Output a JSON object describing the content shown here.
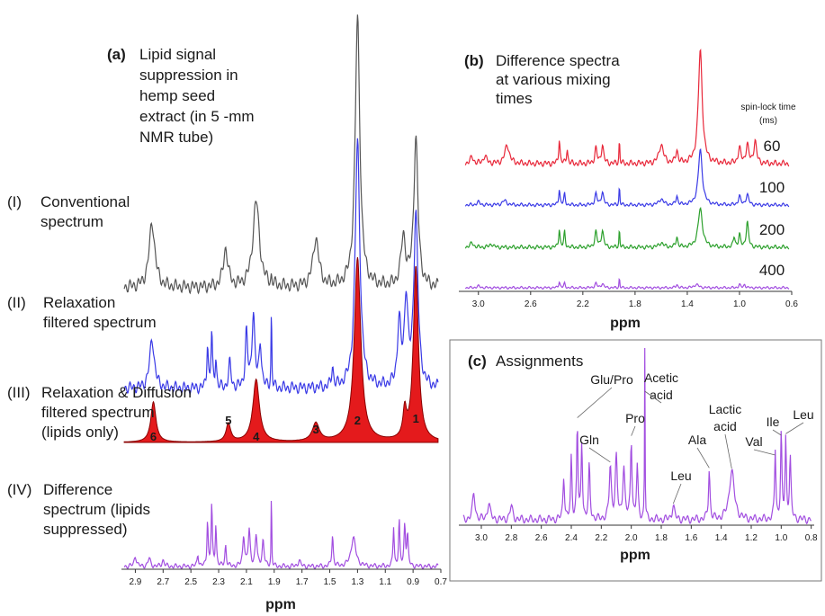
{
  "chart_data": [
    {
      "id": "a",
      "type": "line",
      "panel_label": "(a)",
      "title_lines": [
        "Lipid signal",
        "suppression in",
        "hemp seed",
        "extract (in 5 -mm",
        "NMR tube)"
      ],
      "xlabel": "ppm",
      "xlim": [
        3.0,
        0.7
      ],
      "x_reversed": true,
      "xticks": [
        "2.9",
        "2.7",
        "2.5",
        "2.3",
        "2.1",
        "1.9",
        "1.7",
        "1.5",
        "1.3",
        "1.1",
        "0.9",
        "0.7"
      ],
      "series": [
        {
          "roman": "(I)",
          "label_lines": [
            "Conventional",
            "spectrum"
          ],
          "color": "#555555",
          "fill": false,
          "peaks": [
            [
              2.78,
              0.24,
              0.025
            ],
            [
              2.25,
              0.14,
              0.02
            ],
            [
              2.03,
              0.32,
              0.028
            ],
            [
              1.92,
              0.03,
              0.003
            ],
            [
              1.6,
              0.18,
              0.025
            ],
            [
              1.3,
              1.0,
              0.02
            ],
            [
              0.97,
              0.18,
              0.02
            ],
            [
              0.88,
              0.55,
              0.018
            ]
          ]
        },
        {
          "roman": "(II)",
          "label_lines": [
            "Relaxation",
            "filtered spectrum"
          ],
          "color": "#3a3ae6",
          "fill": false,
          "peaks": [
            [
              2.78,
              0.2,
              0.02
            ],
            [
              2.38,
              0.18,
              0.006
            ],
            [
              2.35,
              0.22,
              0.006
            ],
            [
              2.32,
              0.12,
              0.006
            ],
            [
              2.22,
              0.1,
              0.01
            ],
            [
              2.1,
              0.22,
              0.01
            ],
            [
              2.05,
              0.3,
              0.012
            ],
            [
              2.0,
              0.18,
              0.01
            ],
            [
              1.92,
              0.35,
              0.003
            ],
            [
              1.48,
              0.08,
              0.008
            ],
            [
              1.3,
              1.0,
              0.02
            ],
            [
              1.0,
              0.25,
              0.015
            ],
            [
              0.95,
              0.35,
              0.015
            ],
            [
              0.88,
              0.7,
              0.018
            ]
          ]
        },
        {
          "roman": "(III)",
          "label_lines": [
            "Relaxation & Diffusion",
            "filtered spectrum",
            "(lipids only)"
          ],
          "color": "#e41a1c",
          "fill": true,
          "peaks": [
            [
              2.77,
              0.22,
              0.022
            ],
            [
              2.23,
              0.1,
              0.02
            ],
            [
              2.03,
              0.34,
              0.028
            ],
            [
              1.6,
              0.1,
              0.03
            ],
            [
              1.3,
              1.0,
              0.028
            ],
            [
              0.96,
              0.15,
              0.015
            ],
            [
              0.88,
              0.95,
              0.022
            ]
          ],
          "peak_numbers": [
            {
              "n": "6",
              "x": 2.77
            },
            {
              "n": "5",
              "x": 2.23
            },
            {
              "n": "4",
              "x": 2.03
            },
            {
              "n": "3",
              "x": 1.6
            },
            {
              "n": "2",
              "x": 1.3
            },
            {
              "n": "1",
              "x": 0.88
            }
          ]
        },
        {
          "roman": "(IV)",
          "label_lines": [
            "Difference",
            "spectrum (lipids",
            "suppressed)"
          ],
          "color": "#a24ee0",
          "fill": false,
          "peaks": [
            [
              2.9,
              0.1,
              0.01
            ],
            [
              2.8,
              0.08,
              0.01
            ],
            [
              2.7,
              0.06,
              0.01
            ],
            [
              2.45,
              0.12,
              0.006
            ],
            [
              2.38,
              0.45,
              0.005
            ],
            [
              2.35,
              0.6,
              0.005
            ],
            [
              2.32,
              0.4,
              0.005
            ],
            [
              2.25,
              0.2,
              0.006
            ],
            [
              2.12,
              0.3,
              0.008
            ],
            [
              2.08,
              0.35,
              0.008
            ],
            [
              2.03,
              0.3,
              0.008
            ],
            [
              1.98,
              0.25,
              0.008
            ],
            [
              1.92,
              1.0,
              0.002
            ],
            [
              1.72,
              0.06,
              0.01
            ],
            [
              1.48,
              0.3,
              0.006
            ],
            [
              1.33,
              0.28,
              0.02
            ],
            [
              1.04,
              0.38,
              0.005
            ],
            [
              1.0,
              0.45,
              0.005
            ],
            [
              0.96,
              0.4,
              0.006
            ],
            [
              0.94,
              0.3,
              0.006
            ]
          ]
        }
      ]
    },
    {
      "id": "b",
      "type": "line",
      "panel_label": "(b)",
      "title_lines": [
        "Difference spectra",
        "at various mixing",
        "times"
      ],
      "xlabel": "ppm",
      "xlim": [
        3.15,
        0.6
      ],
      "x_reversed": true,
      "xticks": [
        "3.0",
        "2.6",
        "2.2",
        "1.8",
        "1.4",
        "1.0",
        "0.6"
      ],
      "legend_title_lines": [
        "spin-lock time",
        "(ms)"
      ],
      "series": [
        {
          "name": "60",
          "color": "#e8283a",
          "peaks": [
            [
              3.05,
              0.05,
              0.015
            ],
            [
              2.95,
              0.06,
              0.015
            ],
            [
              2.78,
              0.15,
              0.02
            ],
            [
              2.38,
              0.2,
              0.006
            ],
            [
              2.32,
              0.12,
              0.006
            ],
            [
              2.1,
              0.12,
              0.01
            ],
            [
              2.05,
              0.15,
              0.01
            ],
            [
              1.92,
              0.22,
              0.003
            ],
            [
              1.6,
              0.15,
              0.02
            ],
            [
              1.48,
              0.1,
              0.01
            ],
            [
              1.3,
              0.9,
              0.018
            ],
            [
              1.0,
              0.12,
              0.012
            ],
            [
              0.94,
              0.15,
              0.012
            ],
            [
              0.88,
              0.18,
              0.012
            ]
          ]
        },
        {
          "name": "100",
          "color": "#3a3ae6",
          "peaks": [
            [
              3.0,
              0.04,
              0.015
            ],
            [
              2.8,
              0.06,
              0.02
            ],
            [
              2.38,
              0.22,
              0.006
            ],
            [
              2.34,
              0.15,
              0.006
            ],
            [
              2.1,
              0.15,
              0.01
            ],
            [
              2.05,
              0.18,
              0.01
            ],
            [
              1.92,
              0.3,
              0.003
            ],
            [
              1.6,
              0.08,
              0.02
            ],
            [
              1.48,
              0.12,
              0.008
            ],
            [
              1.3,
              0.75,
              0.018
            ],
            [
              1.0,
              0.12,
              0.01
            ],
            [
              0.94,
              0.14,
              0.012
            ]
          ]
        },
        {
          "name": "200",
          "color": "#2ca02c",
          "peaks": [
            [
              3.05,
              0.05,
              0.015
            ],
            [
              2.9,
              0.04,
              0.015
            ],
            [
              2.38,
              0.22,
              0.006
            ],
            [
              2.34,
              0.18,
              0.006
            ],
            [
              2.1,
              0.18,
              0.01
            ],
            [
              2.05,
              0.2,
              0.01
            ],
            [
              1.92,
              0.25,
              0.003
            ],
            [
              1.6,
              0.05,
              0.02
            ],
            [
              1.48,
              0.12,
              0.008
            ],
            [
              1.3,
              0.45,
              0.02
            ],
            [
              1.04,
              0.12,
              0.008
            ],
            [
              1.0,
              0.15,
              0.008
            ],
            [
              0.94,
              0.3,
              0.01
            ]
          ]
        },
        {
          "name": "400",
          "color": "#a24ee0",
          "peaks": [
            [
              3.0,
              0.03,
              0.015
            ],
            [
              2.38,
              0.12,
              0.006
            ],
            [
              2.34,
              0.08,
              0.006
            ],
            [
              2.1,
              0.08,
              0.01
            ],
            [
              2.05,
              0.08,
              0.01
            ],
            [
              1.92,
              0.3,
              0.002
            ],
            [
              1.48,
              0.06,
              0.008
            ],
            [
              1.33,
              0.06,
              0.02
            ],
            [
              1.0,
              0.06,
              0.008
            ],
            [
              0.96,
              0.06,
              0.008
            ]
          ]
        }
      ]
    },
    {
      "id": "c",
      "type": "line",
      "panel_label": "(c)",
      "title": "Assignments",
      "xlabel": "ppm",
      "xlim": [
        3.15,
        0.78
      ],
      "x_reversed": true,
      "xticks": [
        "3.0",
        "2.8",
        "2.6",
        "2.4",
        "2.2",
        "2.0",
        "1.8",
        "1.6",
        "1.4",
        "1.2",
        "1.0",
        "0.8"
      ],
      "series": [
        {
          "color": "#a24ee0",
          "peaks": [
            [
              3.05,
              0.15,
              0.01
            ],
            [
              2.95,
              0.1,
              0.01
            ],
            [
              2.8,
              0.08,
              0.01
            ],
            [
              2.45,
              0.25,
              0.006
            ],
            [
              2.4,
              0.35,
              0.005
            ],
            [
              2.36,
              0.55,
              0.005
            ],
            [
              2.33,
              0.45,
              0.005
            ],
            [
              2.28,
              0.3,
              0.006
            ],
            [
              2.14,
              0.3,
              0.008
            ],
            [
              2.1,
              0.35,
              0.008
            ],
            [
              2.05,
              0.3,
              0.008
            ],
            [
              2.0,
              0.45,
              0.006
            ],
            [
              1.96,
              0.3,
              0.006
            ],
            [
              1.91,
              1.0,
              0.002
            ],
            [
              1.72,
              0.08,
              0.01
            ],
            [
              1.48,
              0.28,
              0.006
            ],
            [
              1.33,
              0.28,
              0.02
            ],
            [
              1.04,
              0.4,
              0.005
            ],
            [
              1.0,
              0.5,
              0.005
            ],
            [
              0.97,
              0.45,
              0.005
            ],
            [
              0.94,
              0.35,
              0.006
            ]
          ]
        }
      ],
      "annotations": [
        {
          "text_lines": [
            "Acetic",
            "acid"
          ],
          "x": 1.91
        },
        {
          "text_lines": [
            "Glu/Pro"
          ],
          "x": 2.36
        },
        {
          "text_lines": [
            "Pro"
          ],
          "x": 2.0
        },
        {
          "text_lines": [
            "Gln"
          ],
          "x": 2.14
        },
        {
          "text_lines": [
            "Leu"
          ],
          "x": 1.72
        },
        {
          "text_lines": [
            "Ala"
          ],
          "x": 1.48
        },
        {
          "text_lines": [
            "Lactic",
            "acid"
          ],
          "x": 1.33
        },
        {
          "text_lines": [
            "Ile"
          ],
          "x": 1.0
        },
        {
          "text_lines": [
            "Val"
          ],
          "x": 1.04
        },
        {
          "text_lines": [
            "Leu"
          ],
          "x": 0.97
        }
      ]
    }
  ]
}
